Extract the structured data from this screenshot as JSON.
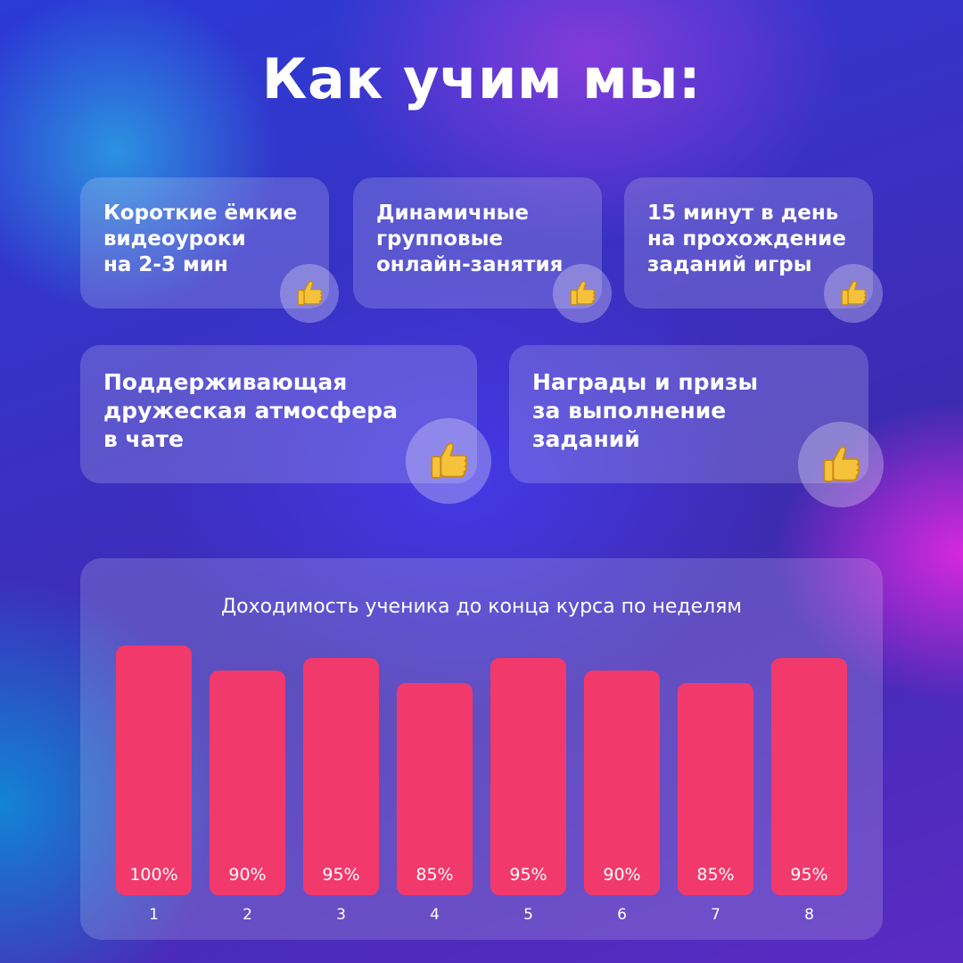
{
  "title": "Как учим мы:",
  "cards": [
    {
      "text": "Короткие ёмкие\nвидеоуроки\nна 2-3 мин",
      "icon": "thumbs-up-icon"
    },
    {
      "text": "Динамичные\nгрупповые\nонлайн-занятия",
      "icon": "thumbs-up-icon"
    },
    {
      "text": "15 минут в день\nна прохождение\nзаданий игры",
      "icon": "thumbs-up-icon"
    },
    {
      "text": "Поддерживающая\nдружеская атмосфера\nв чате",
      "icon": "thumbs-up-icon"
    },
    {
      "text": "Награды и призы\nза выполнение\nзаданий",
      "icon": "thumbs-up-icon"
    }
  ],
  "colors": {
    "bar": "#f2396c",
    "thumb": "#f5c33b"
  },
  "chart_data": {
    "type": "bar",
    "title": "Доходимость ученика до конца курса по неделям",
    "categories": [
      "1",
      "2",
      "3",
      "4",
      "5",
      "6",
      "7",
      "8"
    ],
    "values": [
      100,
      90,
      95,
      85,
      95,
      90,
      85,
      95
    ],
    "data_labels": [
      "100%",
      "90%",
      "95%",
      "85%",
      "95%",
      "90%",
      "85%",
      "95%"
    ],
    "ylim": [
      0,
      100
    ],
    "grid": false
  }
}
